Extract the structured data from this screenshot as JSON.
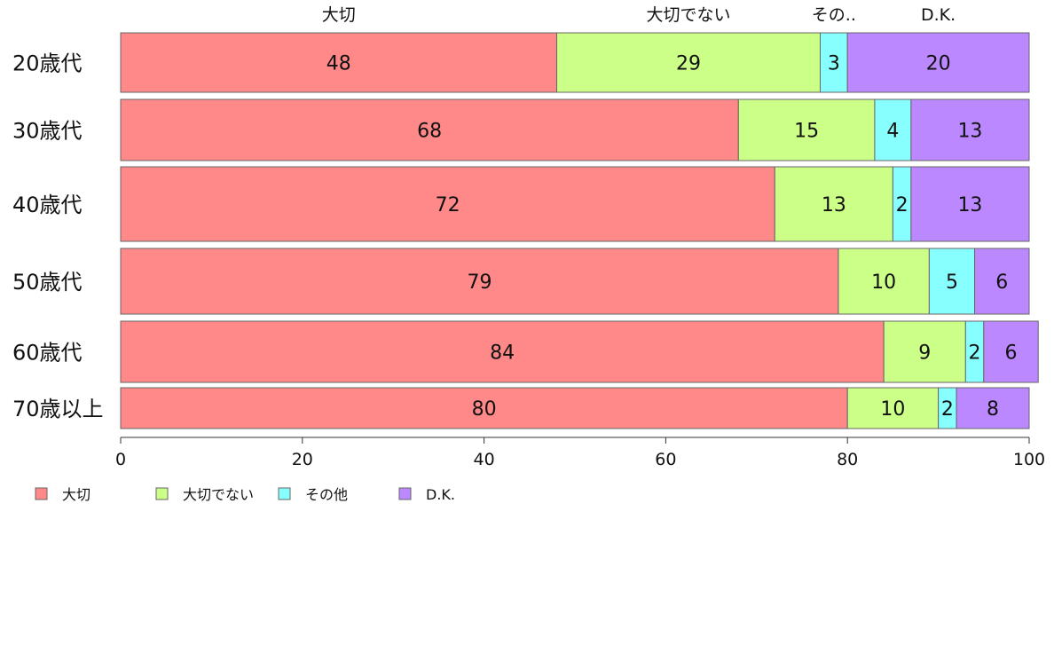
{
  "chart_data": {
    "type": "bar",
    "orientation": "horizontal",
    "stacked": true,
    "categories": [
      "20歳代",
      "30歳代",
      "40歳代",
      "50歳代",
      "60歳代",
      "70歳以上"
    ],
    "series": [
      {
        "name": "大切",
        "values": [
          48,
          68,
          72,
          79,
          84,
          80
        ],
        "color": "#ff8888"
      },
      {
        "name": "大切でない",
        "values": [
          29,
          15,
          13,
          10,
          9,
          10
        ],
        "color": "#ccff88"
      },
      {
        "name": "その他",
        "values": [
          3,
          4,
          2,
          5,
          2,
          2
        ],
        "color": "#88ffff"
      },
      {
        "name": "D.K.",
        "values": [
          20,
          13,
          13,
          6,
          6,
          8
        ],
        "color": "#bb88ff"
      }
    ],
    "top_labels": [
      "大切",
      "大切でない",
      "その..",
      "D.K."
    ],
    "xlim": [
      0,
      100
    ],
    "xticks": [
      0,
      20,
      40,
      60,
      80,
      100
    ],
    "grid": false,
    "legend_position": "bottom-left"
  }
}
